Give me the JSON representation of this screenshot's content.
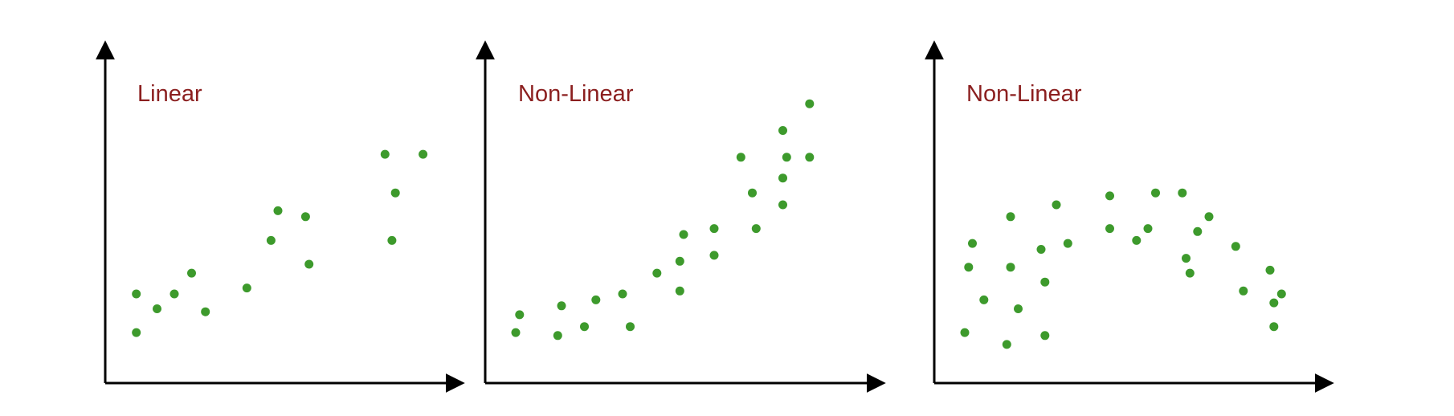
{
  "colors": {
    "axis": "#000000",
    "point": "#3d9a2c",
    "title": "#8b1f1f"
  },
  "chart_data": [
    {
      "type": "scatter",
      "title": "Linear",
      "xlabel": "",
      "ylabel": "",
      "xlim": [
        0,
        100
      ],
      "ylim": [
        0,
        100
      ],
      "grid": false,
      "points": [
        [
          9,
          30
        ],
        [
          9,
          17
        ],
        [
          15,
          25
        ],
        [
          20,
          30
        ],
        [
          25,
          37
        ],
        [
          29,
          24
        ],
        [
          41,
          32
        ],
        [
          48,
          48
        ],
        [
          50,
          58
        ],
        [
          58,
          56
        ],
        [
          59,
          40
        ],
        [
          81,
          77
        ],
        [
          83,
          48
        ],
        [
          84,
          64
        ],
        [
          92,
          77
        ]
      ]
    },
    {
      "type": "scatter",
      "title": "Non-Linear",
      "xlabel": "",
      "ylabel": "",
      "xlim": [
        0,
        100
      ],
      "ylim": [
        0,
        100
      ],
      "grid": false,
      "points": [
        [
          8,
          17
        ],
        [
          9,
          23
        ],
        [
          19,
          16
        ],
        [
          20,
          26
        ],
        [
          26,
          19
        ],
        [
          29,
          28
        ],
        [
          36,
          30
        ],
        [
          38,
          19
        ],
        [
          45,
          37
        ],
        [
          51,
          31
        ],
        [
          51,
          41
        ],
        [
          52,
          50
        ],
        [
          60,
          52
        ],
        [
          60,
          43
        ],
        [
          67,
          76
        ],
        [
          70,
          64
        ],
        [
          71,
          52
        ],
        [
          78,
          60
        ],
        [
          78,
          69
        ],
        [
          78,
          85
        ],
        [
          79,
          76
        ],
        [
          85,
          76
        ],
        [
          85,
          94
        ]
      ]
    },
    {
      "type": "scatter",
      "title": "Non-Linear",
      "xlabel": "",
      "ylabel": "",
      "xlim": [
        0,
        100
      ],
      "ylim": [
        0,
        100
      ],
      "grid": false,
      "points": [
        [
          8,
          17
        ],
        [
          9,
          39
        ],
        [
          10,
          47
        ],
        [
          13,
          28
        ],
        [
          19,
          13
        ],
        [
          20,
          39
        ],
        [
          20,
          56
        ],
        [
          22,
          25
        ],
        [
          28,
          45
        ],
        [
          29,
          34
        ],
        [
          29,
          16
        ],
        [
          32,
          60
        ],
        [
          35,
          47
        ],
        [
          46,
          63
        ],
        [
          46,
          52
        ],
        [
          53,
          48
        ],
        [
          56,
          52
        ],
        [
          58,
          64
        ],
        [
          65,
          64
        ],
        [
          66,
          42
        ],
        [
          67,
          37
        ],
        [
          69,
          51
        ],
        [
          72,
          56
        ],
        [
          79,
          46
        ],
        [
          81,
          31
        ],
        [
          88,
          38
        ],
        [
          89,
          27
        ],
        [
          89,
          19
        ],
        [
          91,
          30
        ]
      ]
    }
  ]
}
